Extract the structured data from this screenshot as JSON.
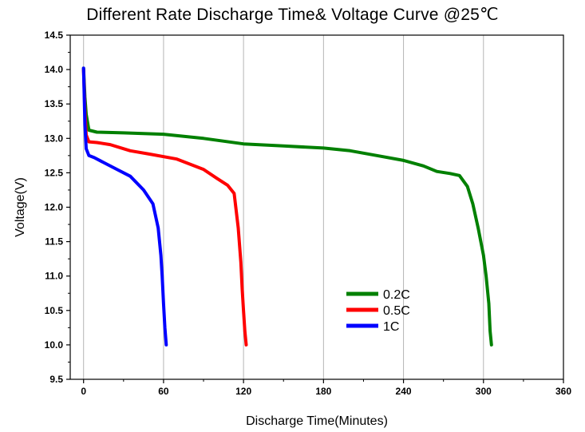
{
  "chart_data": {
    "type": "line",
    "title": "Different Rate Discharge Time& Voltage Curve @25℃",
    "xlabel": "Discharge Time(Minutes)",
    "ylabel": "Voltage(V)",
    "xlim": [
      -10,
      360
    ],
    "ylim": [
      9.5,
      14.5
    ],
    "xticks": [
      0,
      60,
      120,
      180,
      240,
      300,
      360
    ],
    "yticks": [
      9.5,
      10.0,
      10.5,
      11.0,
      11.5,
      12.0,
      12.5,
      13.0,
      13.5,
      14.0,
      14.5
    ],
    "grid": true,
    "legend_position": "lower-right",
    "series": [
      {
        "name": "0.2C",
        "color": "#008000",
        "x": [
          0,
          1,
          2,
          4,
          10,
          30,
          60,
          90,
          120,
          150,
          180,
          200,
          220,
          240,
          255,
          265,
          275,
          282,
          288,
          292,
          296,
          300,
          302,
          304,
          305,
          306
        ],
        "y": [
          14.02,
          13.6,
          13.35,
          13.12,
          13.09,
          13.08,
          13.06,
          13.0,
          12.92,
          12.89,
          12.86,
          12.82,
          12.75,
          12.68,
          12.6,
          12.52,
          12.49,
          12.46,
          12.3,
          12.05,
          11.7,
          11.3,
          11.0,
          10.6,
          10.2,
          10.0
        ]
      },
      {
        "name": "0.5C",
        "color": "#ff0000",
        "x": [
          0,
          1,
          2,
          4,
          10,
          20,
          35,
          50,
          70,
          90,
          100,
          108,
          113,
          116,
          118,
          119,
          120,
          121,
          122
        ],
        "y": [
          14.0,
          13.4,
          13.05,
          12.95,
          12.94,
          12.91,
          12.82,
          12.77,
          12.7,
          12.55,
          12.42,
          12.32,
          12.2,
          11.7,
          11.2,
          10.8,
          10.5,
          10.2,
          10.0
        ]
      },
      {
        "name": "1C",
        "color": "#0000ff",
        "x": [
          0,
          1,
          2,
          4,
          8,
          15,
          25,
          35,
          45,
          52,
          56,
          58,
          59,
          60,
          61,
          62
        ],
        "y": [
          14.02,
          13.2,
          12.85,
          12.75,
          12.72,
          12.65,
          12.55,
          12.45,
          12.25,
          12.05,
          11.7,
          11.3,
          11.0,
          10.6,
          10.25,
          10.0
        ]
      }
    ]
  }
}
